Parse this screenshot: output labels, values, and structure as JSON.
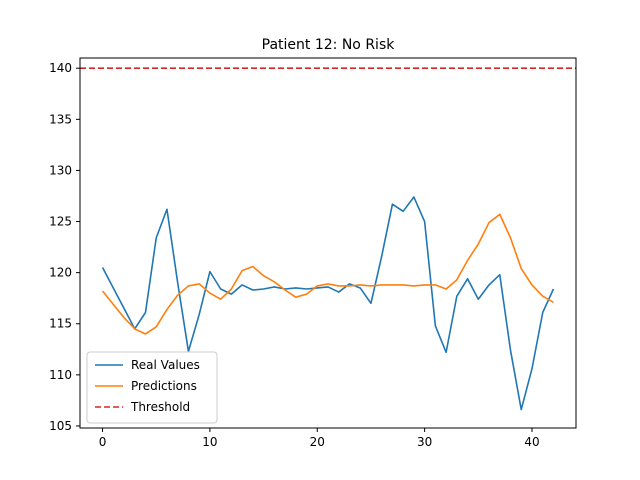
{
  "chart_data": {
    "type": "line",
    "title": "Patient 12: No Risk",
    "xlabel": "",
    "ylabel": "",
    "xlim": [
      -2.1,
      44.1
    ],
    "ylim": [
      104.8,
      141.0
    ],
    "xticks": [
      0,
      10,
      20,
      30,
      40
    ],
    "yticks": [
      105,
      110,
      115,
      120,
      125,
      130,
      135,
      140
    ],
    "grid": false,
    "legend_position": "lower-left",
    "threshold": {
      "name": "Threshold",
      "value": 140,
      "color": "#d62728",
      "style": "dashed"
    },
    "series": [
      {
        "name": "Real Values",
        "color": "#1f77b4",
        "x": [
          0,
          1,
          2,
          3,
          4,
          5,
          6,
          7,
          8,
          9,
          10,
          11,
          12,
          13,
          14,
          15,
          16,
          17,
          18,
          19,
          20,
          21,
          22,
          23,
          24,
          25,
          26,
          27,
          28,
          29,
          30,
          31,
          32,
          33,
          34,
          35,
          36,
          37,
          38,
          39,
          40,
          41,
          42
        ],
        "values": [
          120.5,
          118.5,
          116.5,
          114.5,
          116.1,
          123.4,
          126.2,
          119.0,
          112.3,
          115.9,
          120.1,
          118.4,
          117.9,
          118.8,
          118.3,
          118.4,
          118.6,
          118.4,
          118.5,
          118.4,
          118.5,
          118.6,
          118.1,
          118.9,
          118.5,
          117.0,
          121.6,
          126.7,
          126.0,
          127.4,
          125.0,
          114.8,
          112.2,
          117.7,
          119.4,
          117.4,
          118.8,
          119.8,
          112.4,
          106.6,
          110.6,
          116.1,
          118.4
        ]
      },
      {
        "name": "Predictions",
        "color": "#ff7f0e",
        "x": [
          0,
          1,
          2,
          3,
          4,
          5,
          6,
          7,
          8,
          9,
          10,
          11,
          12,
          13,
          14,
          15,
          16,
          17,
          18,
          19,
          20,
          21,
          22,
          23,
          24,
          25,
          26,
          27,
          28,
          29,
          30,
          31,
          32,
          33,
          34,
          35,
          36,
          37,
          38,
          39,
          40,
          41,
          42
        ],
        "values": [
          118.2,
          116.9,
          115.6,
          114.5,
          114.0,
          114.7,
          116.4,
          117.8,
          118.7,
          118.9,
          118.0,
          117.4,
          118.4,
          120.2,
          120.6,
          119.7,
          119.1,
          118.3,
          117.6,
          117.9,
          118.7,
          118.9,
          118.7,
          118.7,
          118.8,
          118.7,
          118.8,
          118.8,
          118.8,
          118.7,
          118.8,
          118.8,
          118.4,
          119.3,
          121.2,
          122.8,
          124.9,
          125.7,
          123.4,
          120.4,
          118.8,
          117.7,
          117.1
        ]
      }
    ]
  }
}
